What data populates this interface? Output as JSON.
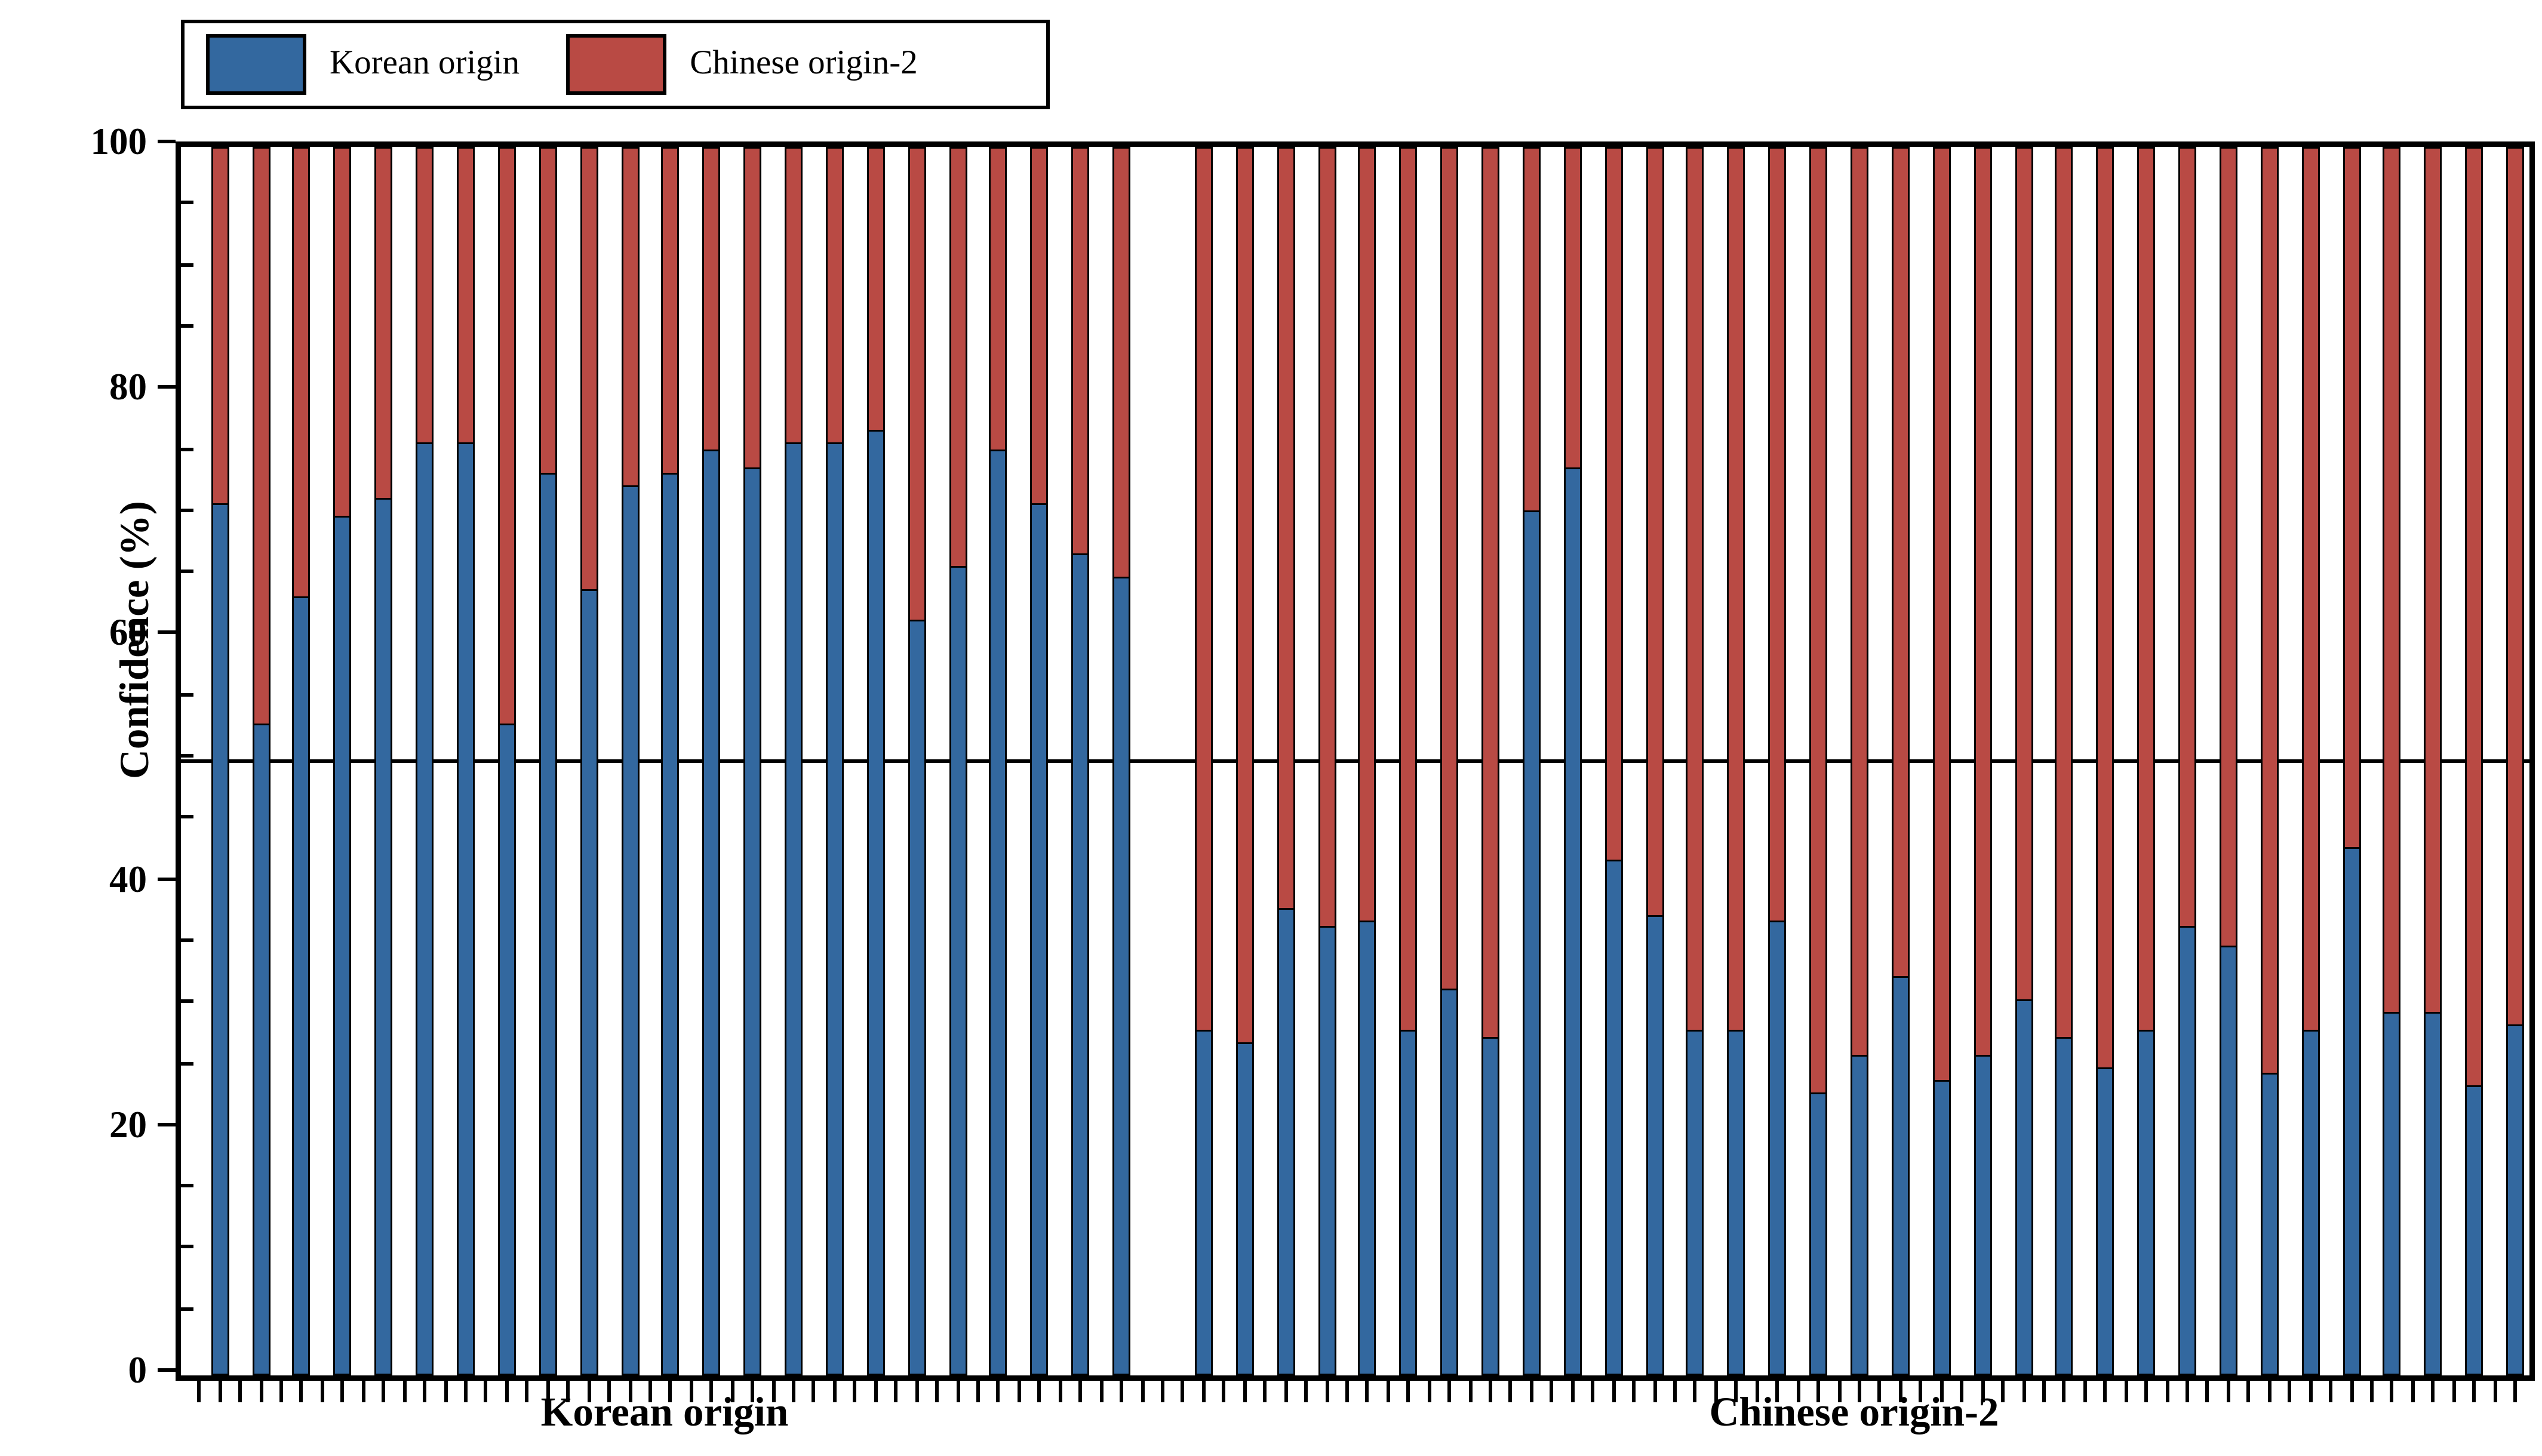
{
  "chart_data": {
    "type": "bar",
    "subtype": "stacked-100pct",
    "ylabel": "Confidence (%)",
    "ylim": [
      0,
      100
    ],
    "yticks_major": [
      0,
      20,
      40,
      60,
      80,
      100
    ],
    "ytick_minor_step": 5,
    "reference_line_y": 50,
    "grid": "off",
    "legend_position": "top-left",
    "legend": [
      {
        "label": "Korean origin",
        "color": "#33689f"
      },
      {
        "label": "Chinese origin-2",
        "color": "#b94a44"
      }
    ],
    "series_note": "Each bar is one sample; blue = confidence assigned to Korean origin (%), red = confidence assigned to Chinese origin-2 (%) = 100 - blue.",
    "groups": [
      {
        "label": "Korean origin",
        "korean_pct": [
          71,
          53,
          63.5,
          70,
          71.5,
          76,
          76,
          53,
          73.5,
          64,
          72.5,
          73.5,
          75.5,
          74,
          76,
          76,
          77,
          61.5,
          66,
          75.5,
          71,
          67,
          65
        ]
      },
      {
        "label": "Chinese origin-2",
        "korean_pct": [
          28,
          27,
          38,
          36.5,
          37,
          28,
          31.5,
          27.5,
          70.5,
          74,
          42,
          37.5,
          28,
          28,
          37,
          23,
          26,
          32.5,
          24,
          26,
          30.5,
          27.5,
          25,
          28,
          36.5,
          35,
          24.5,
          28,
          43,
          29.5,
          29.5,
          23.5,
          28.5
        ]
      }
    ],
    "gap_slots_between_groups": 1
  }
}
